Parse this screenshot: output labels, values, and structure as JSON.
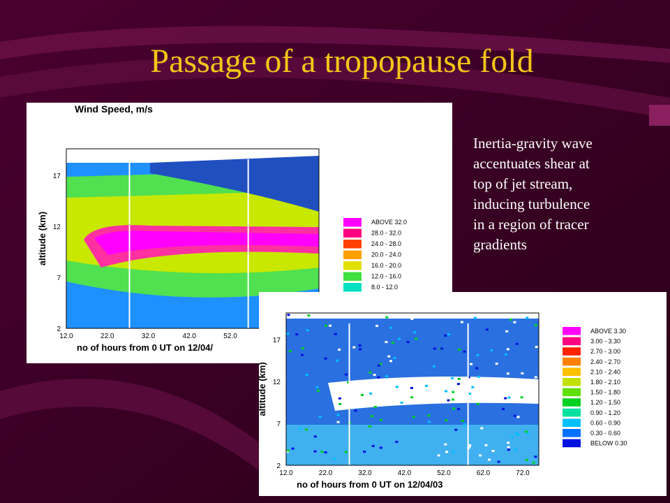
{
  "title": "Passage of a tropopause fold",
  "body_lines": [
    "Inertia-gravity wave",
    "accentuates shear at",
    "top of jet stream,",
    "inducing turbulence",
    "in a region of tracer",
    "gradients"
  ],
  "plots": [
    {
      "title": "Wind Speed, m/s",
      "y_label": "altitude (km)",
      "x_label": "no of hours from 0 UT on 12/04/",
      "y_ticks": [
        "17",
        "12",
        "7",
        "2"
      ],
      "x_ticks": [
        "12.0",
        "22.0",
        "32.0",
        "42.0",
        "52.0"
      ],
      "legend": [
        {
          "label": "ABOVE   32.0",
          "color": "#ff00ff"
        },
        {
          "label": "28.0  -  32.0",
          "color": "#ff0080"
        },
        {
          "label": "24.0  -  28.0",
          "color": "#ff4000"
        },
        {
          "label": "20.0  -  24.0",
          "color": "#ffa000"
        },
        {
          "label": "16.0  -  20.0",
          "color": "#e0e000"
        },
        {
          "label": "12.0  -  16.0",
          "color": "#40e040"
        },
        {
          "label": "8.0  -  12.0",
          "color": "#00e0c0"
        }
      ]
    },
    {
      "y_label": "altitude (km)",
      "x_label": "no of hours from 0 UT on 12/04/03",
      "y_ticks": [
        "17",
        "12",
        "7",
        "2"
      ],
      "x_ticks": [
        "12.0",
        "22.0",
        "32.0",
        "42.0",
        "52.0",
        "62.0",
        "72.0"
      ],
      "legend": [
        {
          "label": "ABOVE   3.30",
          "color": "#ff00ff"
        },
        {
          "label": "3.00  -  3.30",
          "color": "#ff0080"
        },
        {
          "label": "2.70  -  3.00",
          "color": "#ff2000"
        },
        {
          "label": "2.40  -  2.70",
          "color": "#ff8000"
        },
        {
          "label": "2.10  -  2.40",
          "color": "#ffc000"
        },
        {
          "label": "1.80  -  2.10",
          "color": "#c0e000"
        },
        {
          "label": "1.50  -  1.80",
          "color": "#60e000"
        },
        {
          "label": "1.20  -  1.50",
          "color": "#00d020"
        },
        {
          "label": "0.90  -  1.20",
          "color": "#00e0a0"
        },
        {
          "label": "0.60  -  0.90",
          "color": "#00c0ff"
        },
        {
          "label": "0.30  -  0.60",
          "color": "#0070ff"
        },
        {
          "label": "BELOW   0.30",
          "color": "#0010e0"
        }
      ]
    }
  ]
}
